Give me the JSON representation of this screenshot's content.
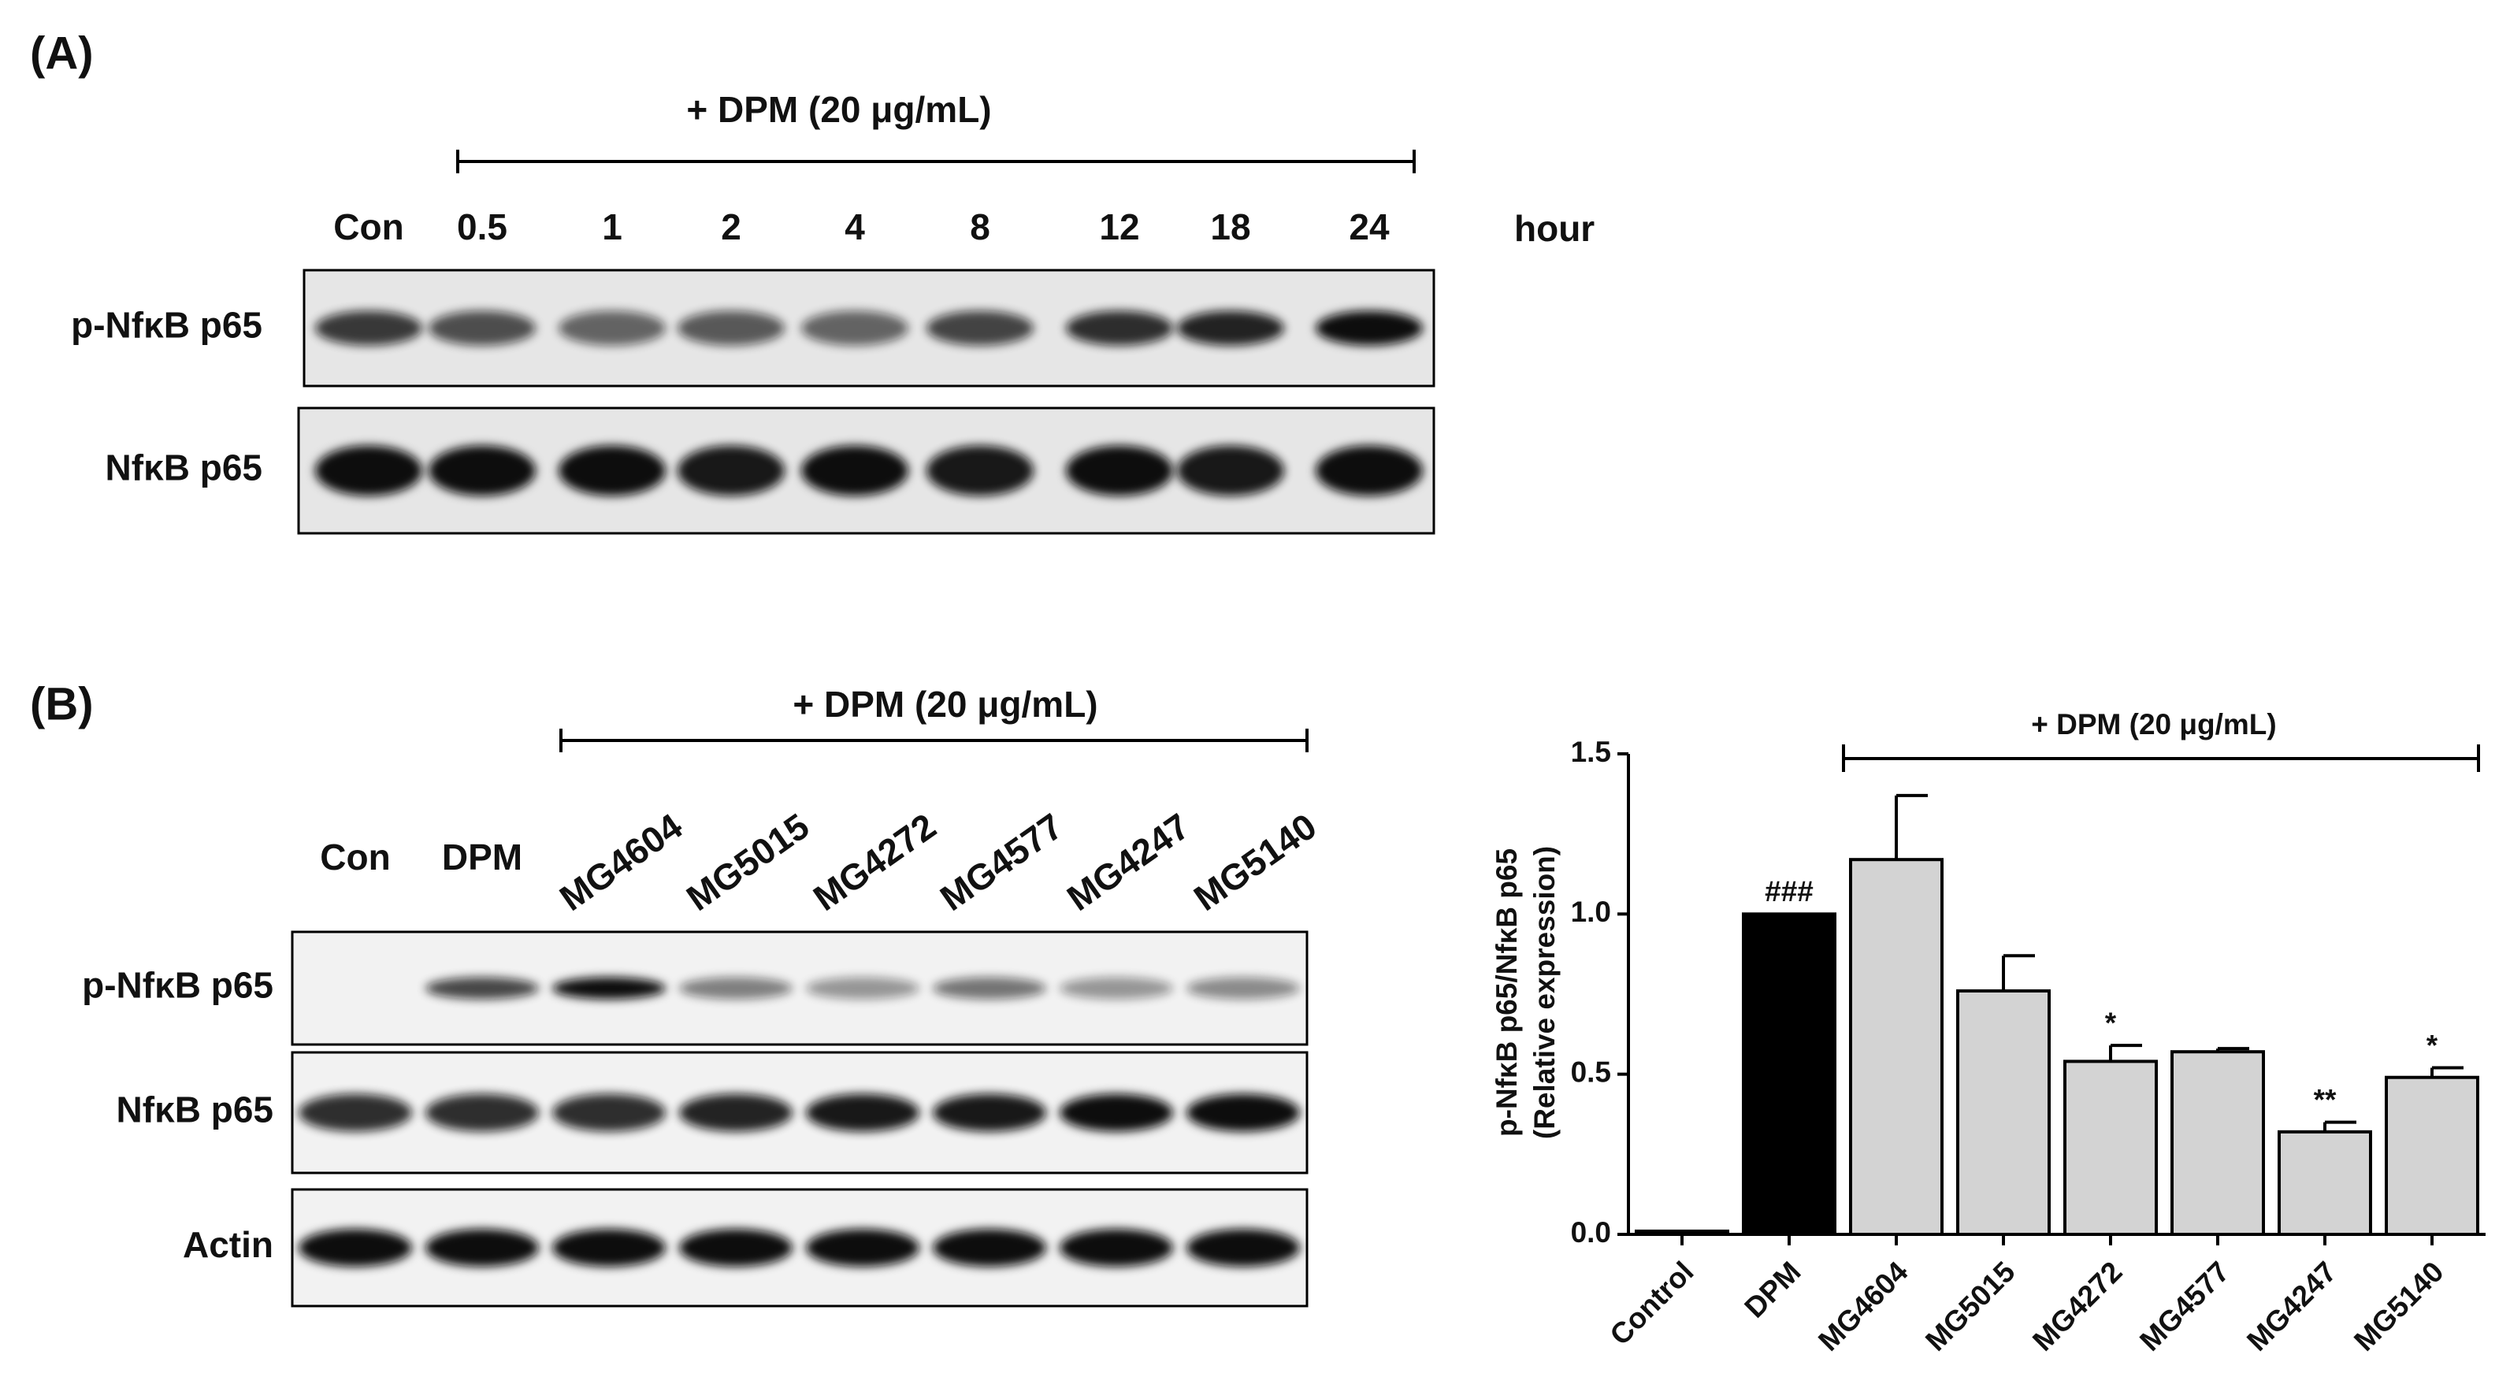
{
  "panel_a": {
    "label": "(A)",
    "treatment": "+ DPM (20 μg/mL)",
    "lanes": [
      "Con",
      "0.5",
      "1",
      "2",
      "4",
      "8",
      "12",
      "18",
      "24"
    ],
    "unit": "hour",
    "rows": [
      "p-NfκB p65",
      "NfκB p65"
    ]
  },
  "panel_b": {
    "label": "(B)",
    "treatment": "+ DPM (20 μg/mL)",
    "lanes": [
      "Con",
      "DPM",
      "MG4604",
      "MG5015",
      "MG4272",
      "MG4577",
      "MG4247",
      "MG5140"
    ],
    "rows": [
      "p-NfκB p65",
      "NfκB p65",
      "Actin"
    ]
  },
  "chart_data": {
    "type": "bar",
    "ylabel": [
      "p-NfκB p65/NfκB p65",
      "(Relative expression)"
    ],
    "bracket": "+ DPM (20 μg/mL)",
    "categories": [
      "Control",
      "DPM",
      "MG4604",
      "MG5015",
      "MG4272",
      "MG4577",
      "MG4247",
      "MG5140"
    ],
    "values": [
      0.01,
      1.0,
      1.17,
      0.76,
      0.54,
      0.57,
      0.32,
      0.49
    ],
    "errors": [
      null,
      null,
      0.2,
      0.11,
      0.05,
      0.01,
      0.03,
      0.03
    ],
    "significance": [
      null,
      "###",
      null,
      null,
      "*",
      null,
      "**",
      "*"
    ],
    "colors": [
      "#000000",
      "#000000",
      "#d3d3d3",
      "#d3d3d3",
      "#d3d3d3",
      "#d3d3d3",
      "#d3d3d3",
      "#d3d3d3"
    ],
    "ylim": [
      0,
      1.5
    ],
    "yticks": [
      {
        "value": 0,
        "label": "0.0"
      },
      {
        "value": 0.5,
        "label": "0.5"
      },
      {
        "value": 1,
        "label": "1.0"
      },
      {
        "value": 1.5,
        "label": "1.5"
      }
    ]
  }
}
